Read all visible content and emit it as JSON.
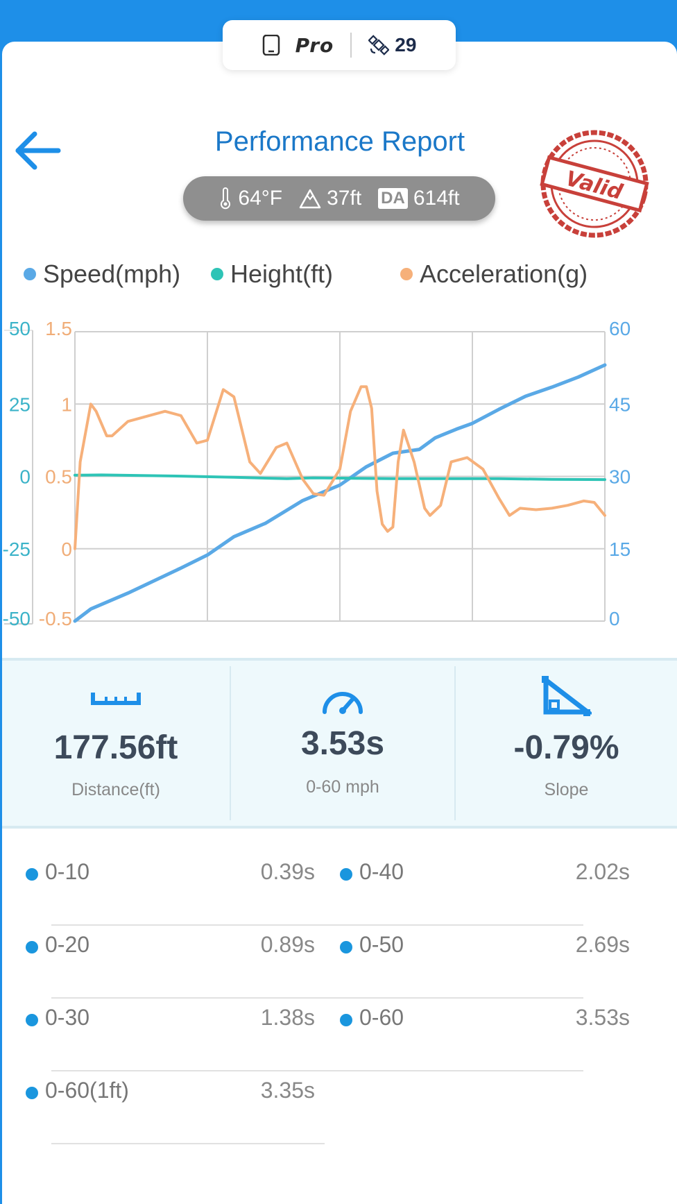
{
  "topbar": {
    "device_icon": "phone-icon",
    "plan_label": "Pro",
    "satellite_icon": "satellite-icon",
    "satellite_count": "29"
  },
  "header": {
    "back_icon": "arrow-left-icon",
    "title": "Performance Report",
    "stamp_text": "Valid",
    "conditions": {
      "temperature": "64°F",
      "altitude": "37ft",
      "da_label": "DA",
      "density_altitude": "614ft"
    }
  },
  "legend": [
    {
      "label": "Speed(mph)",
      "color": "#5aa9e6"
    },
    {
      "label": "Height(ft)",
      "color": "#2ec4b6"
    },
    {
      "label": "Acceleration(g)",
      "color": "#f6b07a"
    }
  ],
  "chart_data": {
    "type": "line",
    "axes": {
      "height": {
        "ticks": [
          "50",
          "25",
          "0",
          "-25",
          "-50"
        ],
        "range": [
          -50,
          50
        ],
        "color": "#3bb3c8"
      },
      "acceleration": {
        "ticks": [
          "1.5",
          "1",
          "0.5",
          "0",
          "-0.5"
        ],
        "range": [
          -0.5,
          1.5
        ],
        "color": "#f0ad78"
      },
      "speed": {
        "ticks": [
          "60",
          "45",
          "30",
          "15",
          "0"
        ],
        "range": [
          0,
          60
        ],
        "color": "#5aa9e6"
      }
    },
    "x_range": [
      0,
      1
    ],
    "grid": true,
    "series": [
      {
        "name": "Speed(mph)",
        "axis": "speed",
        "color": "#5aa9e6",
        "points": [
          [
            0,
            0
          ],
          [
            0.03,
            2.5
          ],
          [
            0.1,
            5.8
          ],
          [
            0.2,
            11
          ],
          [
            0.25,
            13.7
          ],
          [
            0.3,
            17.5
          ],
          [
            0.36,
            20.3
          ],
          [
            0.43,
            25
          ],
          [
            0.5,
            28.2
          ],
          [
            0.55,
            32
          ],
          [
            0.6,
            34.8
          ],
          [
            0.65,
            35.6
          ],
          [
            0.68,
            38
          ],
          [
            0.72,
            39.8
          ],
          [
            0.75,
            41
          ],
          [
            0.8,
            43.9
          ],
          [
            0.85,
            46.6
          ],
          [
            0.9,
            48.5
          ],
          [
            0.95,
            50.6
          ],
          [
            1,
            53.1
          ]
        ]
      },
      {
        "name": "Height(ft)",
        "axis": "height",
        "color": "#2ec4b6",
        "points": [
          [
            0,
            0.4
          ],
          [
            0.05,
            0.5
          ],
          [
            0.2,
            0.1
          ],
          [
            0.3,
            -0.3
          ],
          [
            0.4,
            -0.8
          ],
          [
            0.45,
            -0.5
          ],
          [
            0.5,
            -0.6
          ],
          [
            0.6,
            -0.8
          ],
          [
            0.7,
            -0.8
          ],
          [
            0.8,
            -0.8
          ],
          [
            0.9,
            -1.0
          ],
          [
            1,
            -1.1
          ]
        ]
      },
      {
        "name": "Acceleration(g)",
        "axis": "acceleration",
        "color": "#f6b07a",
        "points": [
          [
            0,
            0
          ],
          [
            0.01,
            0.6
          ],
          [
            0.03,
            1.0
          ],
          [
            0.04,
            0.95
          ],
          [
            0.06,
            0.78
          ],
          [
            0.07,
            0.78
          ],
          [
            0.1,
            0.88
          ],
          [
            0.17,
            0.95
          ],
          [
            0.2,
            0.92
          ],
          [
            0.23,
            0.73
          ],
          [
            0.25,
            0.75
          ],
          [
            0.28,
            1.1
          ],
          [
            0.3,
            1.05
          ],
          [
            0.33,
            0.6
          ],
          [
            0.35,
            0.52
          ],
          [
            0.38,
            0.7
          ],
          [
            0.4,
            0.73
          ],
          [
            0.43,
            0.48
          ],
          [
            0.45,
            0.38
          ],
          [
            0.47,
            0.37
          ],
          [
            0.5,
            0.55
          ],
          [
            0.52,
            0.95
          ],
          [
            0.54,
            1.12
          ],
          [
            0.55,
            1.12
          ],
          [
            0.56,
            0.97
          ],
          [
            0.57,
            0.4
          ],
          [
            0.58,
            0.17
          ],
          [
            0.59,
            0.12
          ],
          [
            0.6,
            0.15
          ],
          [
            0.61,
            0.6
          ],
          [
            0.62,
            0.82
          ],
          [
            0.64,
            0.6
          ],
          [
            0.66,
            0.28
          ],
          [
            0.67,
            0.23
          ],
          [
            0.69,
            0.3
          ],
          [
            0.71,
            0.6
          ],
          [
            0.74,
            0.63
          ],
          [
            0.77,
            0.55
          ],
          [
            0.8,
            0.35
          ],
          [
            0.82,
            0.23
          ],
          [
            0.84,
            0.28
          ],
          [
            0.87,
            0.27
          ],
          [
            0.9,
            0.28
          ],
          [
            0.93,
            0.3
          ],
          [
            0.96,
            0.33
          ],
          [
            0.98,
            0.32
          ],
          [
            1,
            0.23
          ]
        ]
      }
    ]
  },
  "stats": [
    {
      "icon": "ruler-icon",
      "value": "177.56ft",
      "label": "Distance(ft)"
    },
    {
      "icon": "speedometer-icon",
      "value": "3.53s",
      "label": "0-60 mph"
    },
    {
      "icon": "slope-icon",
      "value": "-0.79%",
      "label": "Slope"
    }
  ],
  "splits": [
    {
      "name": "0-10",
      "time": "0.39s"
    },
    {
      "name": "0-40",
      "time": "2.02s"
    },
    {
      "name": "0-20",
      "time": "0.89s"
    },
    {
      "name": "0-50",
      "time": "2.69s"
    },
    {
      "name": "0-30",
      "time": "1.38s"
    },
    {
      "name": "0-60",
      "time": "3.53s"
    },
    {
      "name": "0-60(1ft)",
      "time": "3.35s"
    }
  ]
}
